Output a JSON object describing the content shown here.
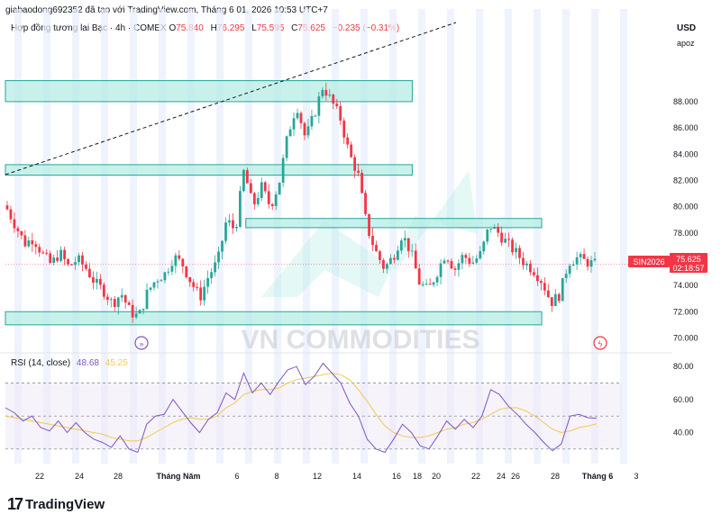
{
  "header": {
    "line": "giabaodong692352 đã tạo với TradingView.com, Tháng 6 01, 2026 10:53 UTC+7"
  },
  "legend": {
    "title": "Hợp đồng tương lai Bạc · 4h · COMEX",
    "open_label": "O",
    "open": "75.840",
    "high_label": "H",
    "high": "76.295",
    "low_label": "L",
    "low": "75.595",
    "close_label": "C",
    "close": "75.625",
    "change": "−0.235 (−0.31%)"
  },
  "price_axis": {
    "currency": "USD",
    "scale_mode": "apoz"
  },
  "price_tag": {
    "symbol": "SIN2026",
    "price": "75.625",
    "countdown": "02:18:57",
    "color": "#f23645"
  },
  "watermark": "VN COMMODITIES",
  "rsi_legend": {
    "label": "RSI (14, close)",
    "rsi": "48.68",
    "ma": "45.25"
  },
  "footer": {
    "logo_text": "TradingView"
  },
  "colors": {
    "up": "#26a69a",
    "down": "#f23645",
    "zone_fill": "#b2ebe2",
    "zone_stroke": "#26a69a",
    "rsi": "#7e57c2",
    "rsi_ma": "#f2c94c",
    "band": "#e8eefc",
    "watermark": "#c9ccd6"
  },
  "chart_data": {
    "type": "candlestick",
    "symbol": "SIN2026",
    "timeframe": "4h",
    "price_ylim": [
      69,
      93
    ],
    "price_ticks": [
      "70.000",
      "72.000",
      "74.000",
      "76.000",
      "78.000",
      "80.000",
      "82.000",
      "84.000",
      "86.000",
      "88.000"
    ],
    "x_ticks": [
      "22",
      "24",
      "28",
      "Tháng Năm",
      "6",
      "8",
      "12",
      "14",
      "16",
      "18",
      "20",
      "22",
      "24",
      "26",
      "28",
      "Tháng 6",
      "3"
    ],
    "candle_count": 165,
    "closes_path": [
      79.8,
      78.5,
      77.2,
      77.6,
      76.4,
      75.6,
      76.5,
      75.4,
      76.0,
      75.3,
      74.2,
      73.6,
      72.6,
      73.4,
      72.0,
      71.6,
      73.5,
      74.5,
      74.9,
      76.2,
      75.6,
      74.2,
      73.1,
      74.8,
      75.8,
      79.0,
      78.2,
      82.8,
      80.0,
      81.5,
      80.0,
      81.8,
      85.5,
      87.8,
      85.2,
      87.0,
      89.2,
      88.0,
      86.7,
      84.0,
      82.5,
      78.5,
      76.6,
      75.3,
      76.2,
      77.9,
      76.6,
      74.2,
      73.6,
      75.0,
      76.5,
      75.2,
      76.3,
      75.7,
      76.4,
      78.6,
      78.0,
      77.2,
      76.5,
      75.7,
      75.2,
      74.3,
      72.7,
      73.3,
      75.8,
      76.1,
      75.8,
      75.6
    ],
    "zones": [
      {
        "top": 89.6,
        "bottom": 88.0,
        "to_x_frac": 0.66
      },
      {
        "top": 83.2,
        "bottom": 82.4,
        "to_x_frac": 0.66
      },
      {
        "top": 79.1,
        "bottom": 78.4,
        "from_x_frac": 0.39,
        "to_x_frac": 0.87
      },
      {
        "top": 72.0,
        "bottom": 71.0,
        "to_x_frac": 0.87
      }
    ],
    "trendline": {
      "from": [
        0,
        81.5
      ],
      "to": [
        0.64,
        93.0
      ]
    },
    "rsi_ticks": [
      "40.00",
      "60.00",
      "80.00"
    ],
    "rsi_ylim": [
      25,
      85
    ],
    "rsi_levels": [
      30,
      50,
      70
    ],
    "rsi_path": [
      55,
      52,
      47,
      50,
      43,
      41,
      47,
      40,
      46,
      40,
      36,
      34,
      31,
      38,
      30,
      28,
      45,
      50,
      51,
      60,
      53,
      46,
      40,
      48,
      52,
      64,
      60,
      76,
      64,
      70,
      63,
      71,
      78,
      80,
      69,
      74,
      82,
      76,
      70,
      58,
      50,
      36,
      30,
      28,
      36,
      45,
      40,
      32,
      30,
      38,
      47,
      42,
      48,
      43,
      50,
      66,
      63,
      56,
      51,
      45,
      40,
      34,
      29,
      33,
      50,
      51,
      49,
      48.7
    ],
    "rsi_ma_path": [
      50,
      49,
      48,
      47,
      46,
      45,
      44,
      43,
      42,
      41,
      40,
      39,
      37,
      36,
      35,
      35,
      37,
      40,
      43,
      46,
      48,
      49,
      48,
      48,
      50,
      55,
      58,
      63,
      65,
      66,
      66,
      67,
      70,
      72,
      73,
      74,
      75,
      76,
      75,
      72,
      66,
      59,
      51,
      44,
      40,
      38,
      37,
      37,
      38,
      40,
      42,
      43,
      45,
      46,
      48,
      51,
      54,
      55,
      55,
      53,
      50,
      46,
      42,
      40,
      41,
      43,
      44,
      45.3
    ],
    "price_line": 75.625,
    "title": "Hợp đồng tương lai Bạc",
    "grid": false
  }
}
